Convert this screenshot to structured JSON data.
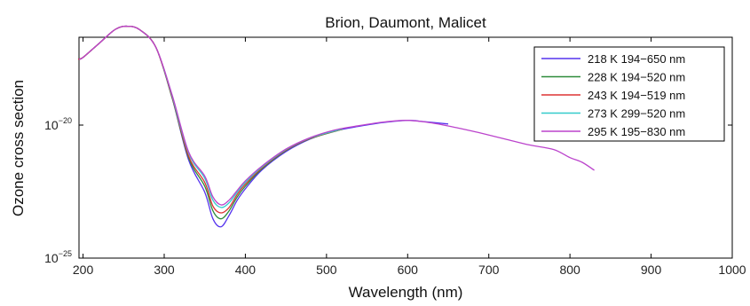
{
  "chart_data": {
    "type": "line",
    "title": "Brion, Daumont, Malicet",
    "xlabel": "Wavelength (nm)",
    "ylabel": "Ozone cross section",
    "yscale": "log",
    "xlim": [
      195,
      1000
    ],
    "ylim": [
      1e-25,
      2e-17
    ],
    "xticks": [
      200,
      300,
      400,
      500,
      600,
      700,
      800,
      900,
      1000
    ],
    "yticks": [
      {
        "value": 1e-25,
        "base": "10",
        "exp": "−25"
      },
      {
        "value": 1e-20,
        "base": "10",
        "exp": "−20"
      }
    ],
    "grid": false,
    "legend": "top-right",
    "series": [
      {
        "name": "218 K  194−650 nm",
        "color": "#5533ee",
        "range": [
          194,
          650
        ],
        "x": [
          194,
          200,
          220,
          240,
          255,
          270,
          290,
          310,
          330,
          350,
          360,
          370,
          380,
          390,
          400,
          420,
          450,
          480,
          510,
          540,
          570,
          600,
          620,
          650
        ],
        "y": [
          3e-18,
          3.5e-18,
          1.2e-17,
          4e-17,
          5.2e-17,
          3.8e-17,
          8e-18,
          1e-19,
          5e-22,
          3e-23,
          3e-24,
          1.5e-24,
          4e-24,
          1.5e-23,
          4e-23,
          2e-22,
          1e-21,
          3e-21,
          6e-21,
          9e-21,
          1.25e-20,
          1.5e-20,
          1.35e-20,
          1.1e-20
        ]
      },
      {
        "name": "228 K  194−520 nm",
        "color": "#2e8b3a",
        "range": [
          194,
          520
        ],
        "x": [
          194,
          200,
          220,
          240,
          255,
          270,
          290,
          310,
          330,
          350,
          360,
          370,
          380,
          390,
          400,
          420,
          450,
          480,
          520
        ],
        "y": [
          3e-18,
          3.5e-18,
          1.2e-17,
          4e-17,
          5.2e-17,
          3.8e-17,
          8e-18,
          1e-19,
          6e-22,
          5e-23,
          6e-24,
          3e-24,
          6e-24,
          2e-23,
          5e-23,
          2.2e-22,
          1.1e-21,
          3.1e-21,
          7e-21
        ]
      },
      {
        "name": "243 K  194−519 nm",
        "color": "#dd3333",
        "range": [
          194,
          519
        ],
        "x": [
          194,
          200,
          220,
          240,
          255,
          270,
          290,
          310,
          330,
          350,
          360,
          370,
          380,
          390,
          400,
          420,
          450,
          480,
          519
        ],
        "y": [
          3e-18,
          3.5e-18,
          1.2e-17,
          4e-17,
          5.2e-17,
          3.8e-17,
          8e-18,
          1.1e-19,
          7e-22,
          7e-23,
          9e-24,
          5e-24,
          8e-24,
          2.5e-23,
          6e-23,
          2.4e-22,
          1.15e-21,
          3.2e-21,
          7e-21
        ]
      },
      {
        "name": "273 K  299−520 nm",
        "color": "#33cccc",
        "range": [
          299,
          520
        ],
        "x": [
          299,
          310,
          330,
          350,
          360,
          370,
          380,
          390,
          400,
          420,
          450,
          480,
          520
        ],
        "y": [
          1.5e-18,
          1.2e-19,
          9e-22,
          1e-22,
          1.5e-23,
          8e-24,
          1.2e-23,
          3e-23,
          7e-23,
          2.6e-22,
          1.2e-21,
          3.3e-21,
          7.2e-21
        ]
      },
      {
        "name": "295 K  195−830 nm",
        "color": "#bb44cc",
        "range": [
          195,
          830
        ],
        "x": [
          195,
          200,
          220,
          240,
          255,
          270,
          290,
          310,
          330,
          350,
          360,
          370,
          380,
          390,
          400,
          420,
          450,
          480,
          510,
          540,
          570,
          600,
          630,
          660,
          690,
          720,
          750,
          780,
          800,
          815,
          830
        ],
        "y": [
          3e-18,
          3.5e-18,
          1.2e-17,
          4e-17,
          5.2e-17,
          3.8e-17,
          8e-18,
          1.3e-19,
          1e-21,
          1.2e-22,
          2e-23,
          1e-23,
          1.5e-23,
          3.5e-23,
          8e-23,
          2.8e-22,
          1.25e-21,
          3.4e-21,
          6.5e-21,
          9.5e-21,
          1.3e-20,
          1.5e-20,
          1.2e-20,
          8e-21,
          5e-21,
          3e-21,
          1.8e-21,
          1.2e-21,
          6e-22,
          4e-22,
          2e-22
        ]
      }
    ]
  }
}
